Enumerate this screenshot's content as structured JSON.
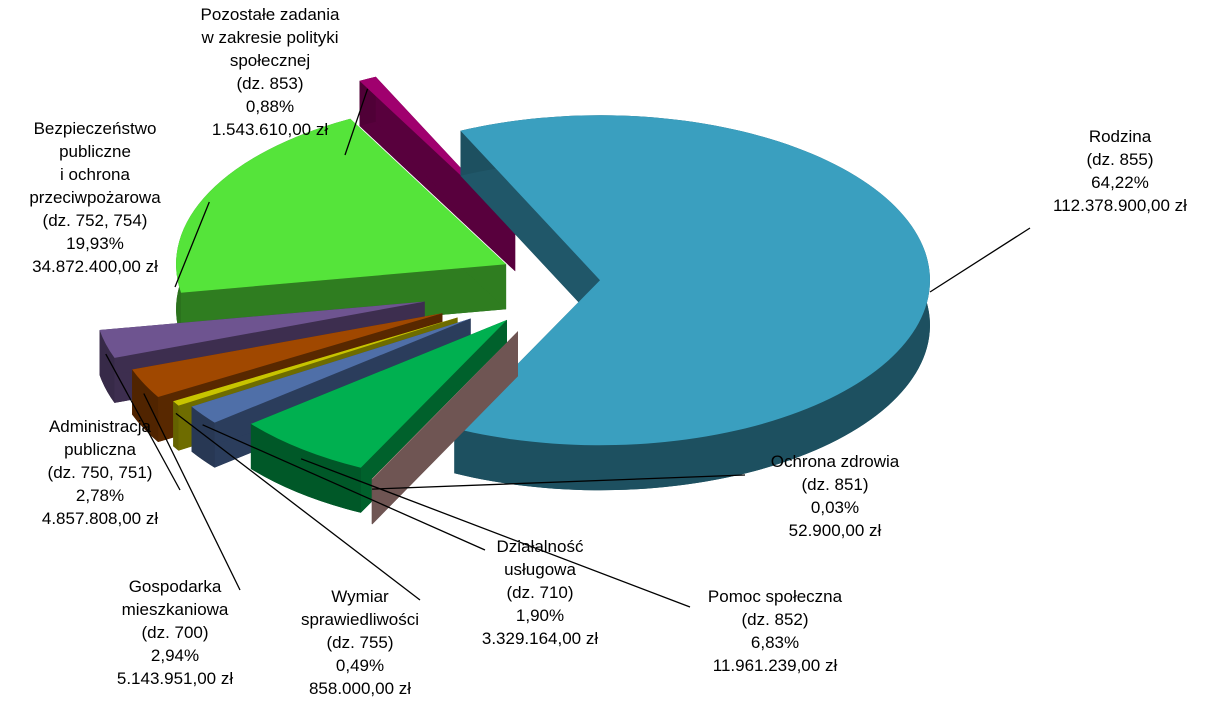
{
  "chart_data": {
    "type": "pie",
    "labels": [
      [
        "Rodzina"
      ],
      [
        "Ochrona zdrowia"
      ],
      [
        "Pomoc społeczna"
      ],
      [
        "Działalność",
        "usługowa"
      ],
      [
        "Wymiar",
        "sprawiedliwości"
      ],
      [
        "Gospodarka",
        "mieszkaniowa"
      ],
      [
        "Administracja",
        "publiczna"
      ],
      [
        "Bezpieczeństwo",
        "publiczne",
        "i ochrona",
        "przeciwpożarowa"
      ],
      [
        "Pozostałe zadania",
        "w zakresie polityki",
        "społecznej"
      ]
    ],
    "codes": [
      "(dz. 855)",
      "(dz. 851)",
      "(dz. 852)",
      "(dz. 710)",
      "(dz. 755)",
      "(dz. 700)",
      "(dz. 750, 751)",
      "(dz. 752, 754)",
      "(dz. 853)"
    ],
    "values": [
      64.22,
      0.03,
      6.83,
      1.9,
      0.49,
      2.94,
      2.78,
      19.93,
      0.88
    ],
    "value_labels": [
      "64,22%",
      "0,03%",
      "6,83%",
      "1,90%",
      "0,49%",
      "2,94%",
      "2,78%",
      "19,93%",
      "0,88%"
    ],
    "amounts": [
      112378900.0,
      52900.0,
      11961239.0,
      3329164.0,
      858000.0,
      5143951.0,
      4857808.0,
      34872400.0,
      1543610.0
    ],
    "amount_labels": [
      "112.378.900,00 zł",
      "52.900,00 zł",
      "11.961.239,00 zł",
      "3.329.164,00 zł",
      "858.000,00 zł",
      "5.143.951,00 zł",
      "4.857.808,00 zł",
      "34.872.400,00 zł",
      "1.543.610,00 zł"
    ],
    "colors": [
      "#3a9fbf",
      "#c99a96",
      "#00b050",
      "#4f6fa8",
      "#c8c400",
      "#a04800",
      "#6e5490",
      "#55e43a",
      "#a0006e"
    ]
  }
}
